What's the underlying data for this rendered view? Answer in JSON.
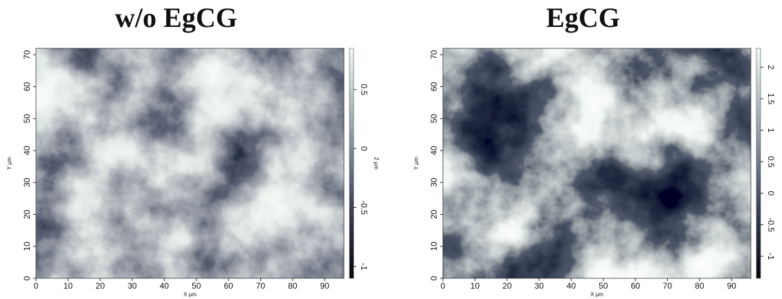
{
  "chart_data": [
    {
      "type": "surface",
      "title": "w/o EgCG",
      "x_label": "X µm",
      "y_label": "Y µm",
      "z_label": "Z µm",
      "xlim": [
        0,
        96
      ],
      "xticks": [
        0,
        10,
        20,
        30,
        40,
        50,
        60,
        70,
        80,
        90
      ],
      "ylim": [
        0,
        72
      ],
      "yticks": [
        0,
        10,
        20,
        30,
        40,
        50,
        60,
        70
      ],
      "zlim": [
        -1.1,
        0.85
      ],
      "zticks": [
        -1,
        -0.5,
        0,
        0.5
      ]
    },
    {
      "type": "surface",
      "title": "EgCG",
      "x_label": "X µm",
      "y_label": "Y µm",
      "xlim": [
        0,
        96
      ],
      "xticks": [
        0,
        10,
        20,
        30,
        40,
        50,
        60,
        70,
        80,
        90
      ],
      "ylim": [
        0,
        72
      ],
      "yticks": [
        0,
        10,
        20,
        30,
        40,
        50,
        60,
        70
      ],
      "zlim": [
        -1.35,
        2.3
      ],
      "zticks": [
        -1,
        -0.5,
        0,
        0.5,
        1,
        1.5,
        2
      ]
    }
  ]
}
